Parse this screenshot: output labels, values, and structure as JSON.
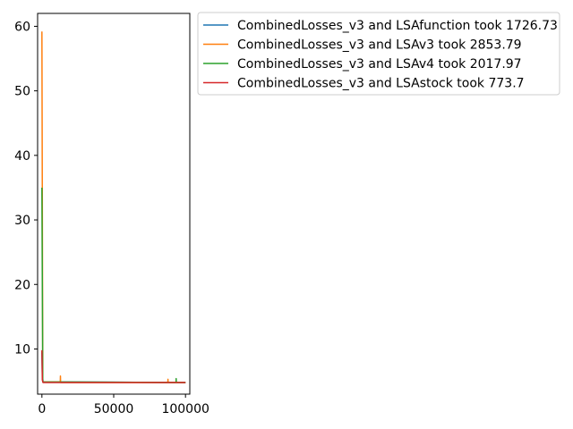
{
  "chart_data": {
    "type": "line",
    "title": "",
    "xlabel": "",
    "ylabel": "",
    "xlim": [
      -3000,
      103000
    ],
    "ylim": [
      3,
      62
    ],
    "xticks": [
      0,
      50000,
      100000
    ],
    "xtick_labels": [
      "0",
      "50000",
      "100000"
    ],
    "yticks": [
      10,
      20,
      30,
      40,
      50,
      60
    ],
    "ytick_labels": [
      "10",
      "20",
      "30",
      "40",
      "50",
      "60"
    ],
    "grid": false,
    "legend_position": "outside-top-right",
    "series": [
      {
        "name": "CombinedLosses_v3 and LSAfunction took 1726.73",
        "color": "#1f77b4",
        "points": [
          [
            0,
            9.5
          ],
          [
            300,
            6.0
          ],
          [
            800,
            4.9
          ],
          [
            100000,
            4.8
          ]
        ]
      },
      {
        "name": "CombinedLosses_v3 and LSAv3 took 2853.79",
        "color": "#ff7f0e",
        "points": [
          [
            0,
            59.2
          ],
          [
            600,
            4.9
          ],
          [
            12800,
            4.9
          ],
          [
            12900,
            5.8
          ],
          [
            13000,
            4.8
          ],
          [
            87700,
            4.8
          ],
          [
            87800,
            5.3
          ],
          [
            87900,
            4.8
          ],
          [
            100000,
            4.8
          ]
        ]
      },
      {
        "name": "CombinedLosses_v3 and LSAv4 took 2017.97",
        "color": "#2ca02c",
        "points": [
          [
            0,
            35.0
          ],
          [
            600,
            4.9
          ],
          [
            93400,
            4.8
          ],
          [
            93500,
            5.4
          ],
          [
            93600,
            4.8
          ],
          [
            100000,
            4.8
          ]
        ]
      },
      {
        "name": "CombinedLosses_v3 and LSAstock took 773.7",
        "color": "#d62728",
        "points": [
          [
            0,
            9.8
          ],
          [
            300,
            5.2
          ],
          [
            800,
            4.8
          ],
          [
            100000,
            4.8
          ]
        ]
      }
    ]
  }
}
